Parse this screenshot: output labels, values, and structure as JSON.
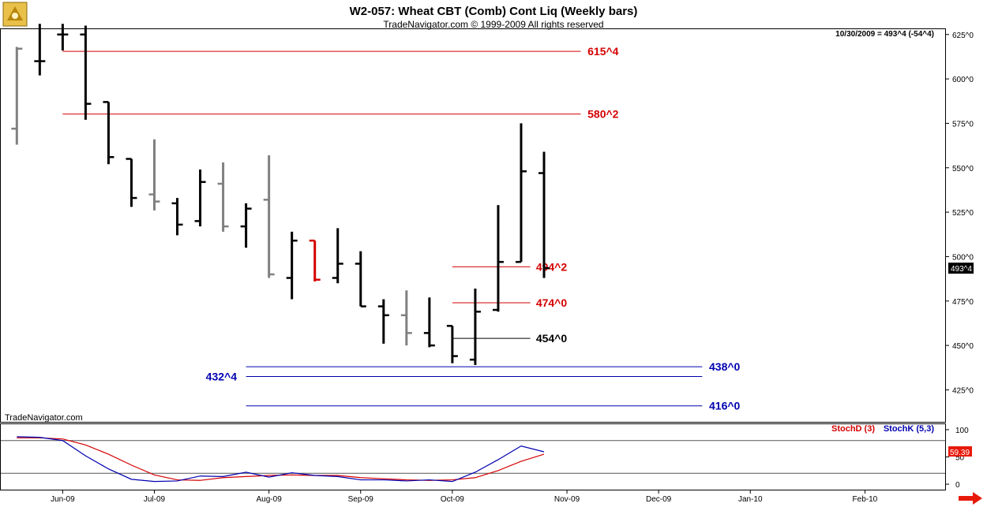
{
  "title": "W2-057:  Wheat CBT (Comb) Cont Liq  (Weekly bars)",
  "subtitle": "TradeNavigator.com © 1999-2009 All rights reserved",
  "watermark": "TradeNavigator.com",
  "readout": "10/30/2009 = 493^4 (-54^4)",
  "last_price_label": "493^4",
  "chart_data": [
    {
      "type": "ohlc",
      "y_axis_ticks": [
        "625^0",
        "600^0",
        "575^0",
        "550^0",
        "525^0",
        "500^0",
        "475^0",
        "450^0",
        "425^0"
      ],
      "ylim": [
        407.0,
        628.0
      ],
      "x_axis_labels": [
        {
          "label": "Jun-09",
          "week": 2
        },
        {
          "label": "Jul-09",
          "week": 6
        },
        {
          "label": "Aug-09",
          "week": 11
        },
        {
          "label": "Sep-09",
          "week": 15
        },
        {
          "label": "Oct-09",
          "week": 19
        },
        {
          "label": "Nov-09",
          "week": 24
        },
        {
          "label": "Dec-09",
          "week": 28
        },
        {
          "label": "Jan-10",
          "week": 32
        },
        {
          "label": "Feb-10",
          "week": 37
        }
      ],
      "xlim": [
        -0.7,
        40.5
      ],
      "bars": [
        {
          "week": 0,
          "o": 572,
          "h": 618,
          "l": 563,
          "c": 617,
          "color": "#808080"
        },
        {
          "week": 1,
          "o": 610,
          "h": 645,
          "l": 602,
          "c": 610,
          "color": "#000000"
        },
        {
          "week": 2,
          "o": 625,
          "h": 640,
          "l": 616,
          "c": 625,
          "color": "#000000"
        },
        {
          "week": 3,
          "o": 625,
          "h": 630,
          "l": 577,
          "c": 586,
          "color": "#000000"
        },
        {
          "week": 4,
          "o": 587,
          "h": 587,
          "l": 552,
          "c": 556,
          "color": "#000000"
        },
        {
          "week": 5,
          "o": 555,
          "h": 555,
          "l": 528,
          "c": 533,
          "color": "#000000"
        },
        {
          "week": 6,
          "o": 535,
          "h": 566,
          "l": 526,
          "c": 531,
          "color": "#808080"
        },
        {
          "week": 7,
          "o": 530,
          "h": 533,
          "l": 512,
          "c": 518,
          "color": "#000000"
        },
        {
          "week": 8,
          "o": 520,
          "h": 549,
          "l": 517,
          "c": 542,
          "color": "#000000"
        },
        {
          "week": 9,
          "o": 541,
          "h": 553,
          "l": 514,
          "c": 517,
          "color": "#808080"
        },
        {
          "week": 10,
          "o": 517,
          "h": 530,
          "l": 505,
          "c": 527,
          "color": "#000000"
        },
        {
          "week": 11,
          "o": 532,
          "h": 557,
          "l": 488,
          "c": 490,
          "color": "#808080"
        },
        {
          "week": 12,
          "o": 488,
          "h": 514,
          "l": 476,
          "c": 509,
          "color": "#000000"
        },
        {
          "week": 13,
          "o": 509,
          "h": 509,
          "l": 486,
          "c": 487,
          "color": "#d40000"
        },
        {
          "week": 14,
          "o": 488,
          "h": 516,
          "l": 485,
          "c": 496,
          "color": "#000000"
        },
        {
          "week": 15,
          "o": 496,
          "h": 503,
          "l": 472,
          "c": 472,
          "color": "#000000"
        },
        {
          "week": 16,
          "o": 472,
          "h": 476,
          "l": 451,
          "c": 467,
          "color": "#000000"
        },
        {
          "week": 17,
          "o": 467,
          "h": 481,
          "l": 450,
          "c": 457,
          "color": "#808080"
        },
        {
          "week": 18,
          "o": 457,
          "h": 477,
          "l": 449,
          "c": 450,
          "color": "#000000"
        },
        {
          "week": 19,
          "o": 461,
          "h": 461,
          "l": 440,
          "c": 444,
          "color": "#000000"
        },
        {
          "week": 20,
          "o": 442,
          "h": 482,
          "l": 439,
          "c": 469,
          "color": "#000000"
        },
        {
          "week": 21,
          "o": 470,
          "h": 529,
          "l": 469,
          "c": 497,
          "color": "#000000"
        },
        {
          "week": 22,
          "o": 497,
          "h": 575,
          "l": 497,
          "c": 548,
          "color": "#000000"
        },
        {
          "week": 23,
          "o": 547,
          "h": 559,
          "l": 488,
          "c": 493.5,
          "color": "#000000"
        }
      ],
      "levels": [
        {
          "label": "615^4",
          "value": 615.5,
          "color": "#d40000",
          "from_week": 2,
          "to_week": 24.6,
          "label_side": "right",
          "label_week": 24.9
        },
        {
          "label": "580^2",
          "value": 580.25,
          "color": "#d40000",
          "from_week": 2,
          "to_week": 24.6,
          "label_side": "right",
          "label_week": 24.9
        },
        {
          "label": "494^2",
          "value": 494.25,
          "color": "#d40000",
          "from_week": 19,
          "to_week": 22.4,
          "label_side": "right",
          "label_week": 22.65
        },
        {
          "label": "474^0",
          "value": 474.0,
          "color": "#d40000",
          "from_week": 19,
          "to_week": 22.4,
          "label_side": "right",
          "label_week": 22.65
        },
        {
          "label": "454^0",
          "value": 454.0,
          "color": "#000000",
          "from_week": 19,
          "to_week": 22.4,
          "label_side": "right",
          "label_week": 22.65
        },
        {
          "label": "438^0",
          "value": 438.0,
          "color": "#0000b0",
          "from_week": 10,
          "to_week": 29.9,
          "label_side": "right",
          "label_week": 30.2
        },
        {
          "label": "432^4",
          "value": 432.5,
          "color": "#0000b0",
          "from_week": 10,
          "to_week": 29.9,
          "label_side": "left",
          "label_week": 9.6
        },
        {
          "label": "416^0",
          "value": 416.0,
          "color": "#0000b0",
          "from_week": 10,
          "to_week": 29.9,
          "label_side": "right",
          "label_week": 30.2
        }
      ]
    },
    {
      "type": "line",
      "y_axis_ticks": [
        "100",
        "50",
        "0"
      ],
      "ylim": [
        -10,
        110
      ],
      "ref_lines": [
        80,
        20
      ],
      "last_value_label": "59.39",
      "series": [
        {
          "name": "StochD (3)",
          "color": "#d40000",
          "x": [
            0,
            1,
            2,
            3,
            4,
            5,
            6,
            7,
            8,
            9,
            10,
            11,
            12,
            13,
            14,
            15,
            16,
            17,
            18,
            19,
            20,
            21,
            22,
            23
          ],
          "values": [
            85,
            85,
            83,
            72,
            55,
            35,
            17,
            8,
            7,
            12,
            14,
            16,
            17,
            16,
            16,
            12,
            10,
            8,
            7,
            8,
            12,
            25,
            42,
            55
          ]
        },
        {
          "name": "StochK (5,3)",
          "color": "#0000b0",
          "x": [
            0,
            1,
            2,
            3,
            4,
            5,
            6,
            7,
            8,
            9,
            10,
            11,
            12,
            13,
            14,
            15,
            16,
            17,
            18,
            19,
            20,
            21,
            22,
            23
          ],
          "values": [
            87,
            86,
            80,
            52,
            28,
            9,
            5,
            6,
            15,
            14,
            22,
            13,
            21,
            16,
            14,
            8,
            8,
            6,
            8,
            5,
            22,
            45,
            70,
            59.39
          ]
        }
      ]
    }
  ]
}
